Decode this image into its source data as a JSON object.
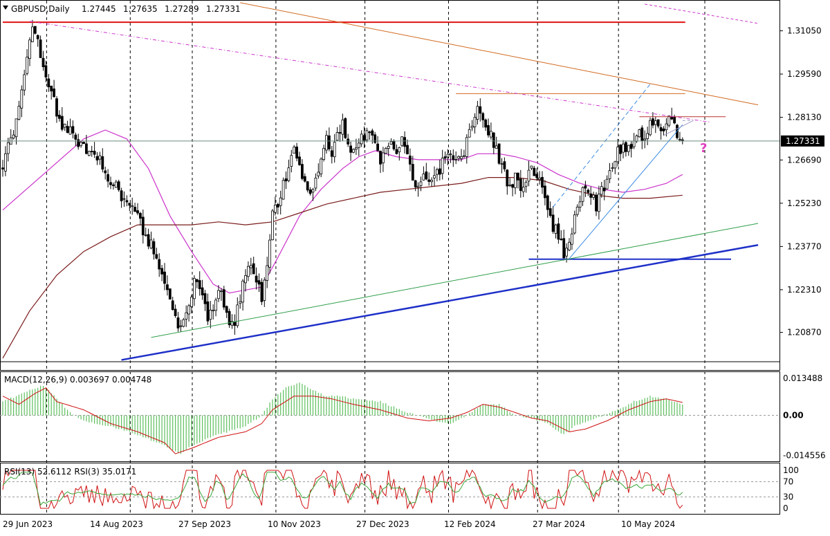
{
  "chart_data": {
    "type": "candlestick",
    "header": {
      "symbol": "GBPUSD,Daily",
      "open": "1.27445",
      "high": "1.27635",
      "low": "1.27289",
      "close": "1.27331"
    },
    "price_axis": {
      "ylim": [
        1.1995,
        1.3195
      ],
      "ticks": [
        "1.31050",
        "1.29590",
        "1.28130",
        "1.26690",
        "1.25230",
        "1.23770",
        "1.22310",
        "1.20870"
      ],
      "current_price": "1.27331"
    },
    "time_axis": {
      "labels": [
        "29 Jun 2023",
        "14 Aug 2023",
        "27 Sep 2023",
        "10 Nov 2023",
        "27 Dec 2023",
        "12 Feb 2024",
        "27 Mar 2024",
        "10 May 2024"
      ]
    },
    "annotation": "?",
    "path_waypoints": [
      [
        0,
        1.265
      ],
      [
        3,
        1.274
      ],
      [
        6,
        1.283
      ],
      [
        9,
        1.3
      ],
      [
        11,
        1.313
      ],
      [
        13,
        1.307
      ],
      [
        15,
        1.298
      ],
      [
        18,
        1.29
      ],
      [
        21,
        1.28
      ],
      [
        25,
        1.276
      ],
      [
        28,
        1.273
      ],
      [
        31,
        1.271
      ],
      [
        35,
        1.268
      ],
      [
        38,
        1.263
      ],
      [
        41,
        1.259
      ],
      [
        44,
        1.254
      ],
      [
        47,
        1.251
      ],
      [
        50,
        1.247
      ],
      [
        53,
        1.242
      ],
      [
        56,
        1.236
      ],
      [
        59,
        1.228
      ],
      [
        62,
        1.22
      ],
      [
        64,
        1.214
      ],
      [
        66,
        1.21
      ],
      [
        68,
        1.215
      ],
      [
        70,
        1.222
      ],
      [
        72,
        1.228
      ],
      [
        74,
        1.22
      ],
      [
        76,
        1.214
      ],
      [
        78,
        1.214
      ],
      [
        80,
        1.223
      ],
      [
        82,
        1.218
      ],
      [
        84,
        1.212
      ],
      [
        86,
        1.213
      ],
      [
        88,
        1.22
      ],
      [
        90,
        1.229
      ],
      [
        92,
        1.232
      ],
      [
        94,
        1.226
      ],
      [
        96,
        1.221
      ],
      [
        98,
        1.233
      ],
      [
        100,
        1.249
      ],
      [
        102,
        1.252
      ],
      [
        104,
        1.259
      ],
      [
        106,
        1.264
      ],
      [
        108,
        1.27
      ],
      [
        110,
        1.265
      ],
      [
        112,
        1.26
      ],
      [
        114,
        1.256
      ],
      [
        116,
        1.26
      ],
      [
        118,
        1.265
      ],
      [
        120,
        1.275
      ],
      [
        122,
        1.27
      ],
      [
        124,
        1.275
      ],
      [
        126,
        1.279
      ],
      [
        128,
        1.272
      ],
      [
        130,
        1.269
      ],
      [
        132,
        1.272
      ],
      [
        134,
        1.275
      ],
      [
        136,
        1.276
      ],
      [
        138,
        1.271
      ],
      [
        140,
        1.267
      ],
      [
        142,
        1.27
      ],
      [
        144,
        1.273
      ],
      [
        146,
        1.27
      ],
      [
        148,
        1.274
      ],
      [
        150,
        1.268
      ],
      [
        152,
        1.26
      ],
      [
        154,
        1.256
      ],
      [
        156,
        1.262
      ],
      [
        158,
        1.258
      ],
      [
        160,
        1.26
      ],
      [
        162,
        1.264
      ],
      [
        164,
        1.268
      ],
      [
        166,
        1.27
      ],
      [
        168,
        1.265
      ],
      [
        170,
        1.267
      ],
      [
        172,
        1.273
      ],
      [
        174,
        1.279
      ],
      [
        176,
        1.285
      ],
      [
        178,
        1.28
      ],
      [
        180,
        1.277
      ],
      [
        182,
        1.273
      ],
      [
        184,
        1.268
      ],
      [
        186,
        1.262
      ],
      [
        188,
        1.258
      ],
      [
        190,
        1.261
      ],
      [
        192,
        1.256
      ],
      [
        194,
        1.26
      ],
      [
        196,
        1.265
      ],
      [
        198,
        1.262
      ],
      [
        200,
        1.256
      ],
      [
        202,
        1.248
      ],
      [
        204,
        1.244
      ],
      [
        206,
        1.242
      ],
      [
        208,
        1.235
      ],
      [
        210,
        1.24
      ],
      [
        212,
        1.248
      ],
      [
        214,
        1.254
      ],
      [
        216,
        1.258
      ],
      [
        218,
        1.255
      ],
      [
        220,
        1.251
      ],
      [
        222,
        1.256
      ],
      [
        224,
        1.26
      ],
      [
        226,
        1.265
      ],
      [
        228,
        1.27
      ],
      [
        230,
        1.271
      ],
      [
        232,
        1.27
      ],
      [
        234,
        1.274
      ],
      [
        236,
        1.275
      ],
      [
        238,
        1.276
      ],
      [
        240,
        1.279
      ],
      [
        242,
        1.281
      ],
      [
        244,
        1.278
      ],
      [
        246,
        1.279
      ],
      [
        248,
        1.28
      ],
      [
        250,
        1.276
      ],
      [
        252,
        1.2733
      ]
    ],
    "bars": 253,
    "moving_averages": [
      {
        "color": "#cc33cc",
        "points": [
          [
            0,
            1.25
          ],
          [
            15,
            1.262
          ],
          [
            30,
            1.274
          ],
          [
            38,
            1.277
          ],
          [
            46,
            1.274
          ],
          [
            54,
            1.264
          ],
          [
            62,
            1.248
          ],
          [
            70,
            1.236
          ],
          [
            78,
            1.225
          ],
          [
            84,
            1.222
          ],
          [
            90,
            1.223
          ],
          [
            96,
            1.224
          ],
          [
            102,
            1.234
          ],
          [
            110,
            1.248
          ],
          [
            118,
            1.257
          ],
          [
            126,
            1.264
          ],
          [
            132,
            1.268
          ],
          [
            138,
            1.27
          ],
          [
            146,
            1.268
          ],
          [
            154,
            1.267
          ],
          [
            162,
            1.267
          ],
          [
            170,
            1.267
          ],
          [
            176,
            1.269
          ],
          [
            184,
            1.269
          ],
          [
            190,
            1.268
          ],
          [
            198,
            1.266
          ],
          [
            206,
            1.262
          ],
          [
            214,
            1.259
          ],
          [
            222,
            1.257
          ],
          [
            230,
            1.256
          ],
          [
            238,
            1.257
          ],
          [
            246,
            1.259
          ],
          [
            252,
            1.262
          ]
        ]
      },
      {
        "color": "#7a1a1a",
        "points": [
          [
            0,
            1.2
          ],
          [
            10,
            1.216
          ],
          [
            20,
            1.228
          ],
          [
            30,
            1.236
          ],
          [
            40,
            1.241
          ],
          [
            50,
            1.245
          ],
          [
            60,
            1.245
          ],
          [
            70,
            1.245
          ],
          [
            80,
            1.246
          ],
          [
            90,
            1.245
          ],
          [
            100,
            1.246
          ],
          [
            110,
            1.249
          ],
          [
            120,
            1.252
          ],
          [
            130,
            1.254
          ],
          [
            140,
            1.256
          ],
          [
            150,
            1.257
          ],
          [
            160,
            1.258
          ],
          [
            170,
            1.259
          ],
          [
            180,
            1.261
          ],
          [
            190,
            1.261
          ],
          [
            200,
            1.26
          ],
          [
            210,
            1.257
          ],
          [
            220,
            1.255
          ],
          [
            230,
            1.254
          ],
          [
            240,
            1.254
          ],
          [
            252,
            1.255
          ]
        ]
      }
    ],
    "levels": [
      {
        "color": "#e01010",
        "value": 1.3134,
        "from": 0,
        "to": 253
      },
      {
        "color": "#d2691e",
        "value": 1.2893,
        "from": 168,
        "to": 253
      },
      {
        "color": "#b83030",
        "value": 1.2815,
        "from": 236,
        "to": 268
      },
      {
        "color": "#1e30c8",
        "value": 1.2334,
        "from": 195,
        "to": 270
      }
    ],
    "trend_lines": [
      {
        "color": "#1e30c8",
        "width": 2.5,
        "dash": "",
        "from": [
          44,
          1.1994
        ],
        "to": [
          280,
          1.2382
        ]
      },
      {
        "color": "#2e9e4a",
        "width": 1,
        "dash": "",
        "from": [
          55,
          1.207
        ],
        "to": [
          280,
          1.2455
        ]
      },
      {
        "color": "#d2691e",
        "width": 1,
        "dash": "",
        "from": [
          88,
          1.32
        ],
        "to": [
          280,
          1.2855
        ]
      },
      {
        "color": "#cc33cc",
        "width": 1,
        "dash": "5,3,1,3",
        "from": [
          10,
          1.3137
        ],
        "to": [
          262,
          1.2797
        ]
      },
      {
        "color": "#cc33cc",
        "width": 1,
        "dash": "4,3",
        "from": [
          238,
          1.3195
        ],
        "to": [
          280,
          1.313
        ]
      },
      {
        "color": "#3a8ae0",
        "width": 1,
        "dash": "",
        "from": [
          210,
          1.2336
        ],
        "to": [
          252,
          1.2788
        ]
      },
      {
        "color": "#3a8ae0",
        "width": 1,
        "dash": "6,4",
        "from": [
          204,
          1.251
        ],
        "to": [
          240,
          1.2925
        ]
      },
      {
        "color": "#a0a0c8",
        "width": 1,
        "dash": "",
        "from": [
          245,
          1.2752
        ],
        "to": [
          256,
          1.2802
        ]
      },
      {
        "color": "#a0a0c8",
        "width": 1,
        "dash": "4,3",
        "from": [
          252,
          1.2802
        ],
        "to": [
          256,
          1.2802
        ]
      }
    ],
    "macd": {
      "label": "MACD(12,26,9) 0.003697 0.004748",
      "ticks": [
        "0.013488",
        "0.00",
        "-0.014556"
      ],
      "ylim": [
        -0.0165,
        0.0155
      ],
      "hist_waypoints": [
        [
          0,
          0.005
        ],
        [
          10,
          0.009
        ],
        [
          15,
          0.011
        ],
        [
          20,
          0.006
        ],
        [
          25,
          0.001
        ],
        [
          30,
          -0.002
        ],
        [
          40,
          -0.004
        ],
        [
          50,
          -0.007
        ],
        [
          55,
          -0.009
        ],
        [
          60,
          -0.011
        ],
        [
          64,
          -0.013
        ],
        [
          66,
          -0.014
        ],
        [
          70,
          -0.011
        ],
        [
          80,
          -0.007
        ],
        [
          90,
          -0.004
        ],
        [
          96,
          0.0
        ],
        [
          100,
          0.006
        ],
        [
          105,
          0.01
        ],
        [
          110,
          0.012
        ],
        [
          115,
          0.009
        ],
        [
          120,
          0.007
        ],
        [
          125,
          0.007
        ],
        [
          130,
          0.006
        ],
        [
          140,
          0.005
        ],
        [
          150,
          0.001
        ],
        [
          160,
          -0.002
        ],
        [
          166,
          -0.003
        ],
        [
          172,
          0.0
        ],
        [
          178,
          0.004
        ],
        [
          184,
          0.004
        ],
        [
          190,
          0.0
        ],
        [
          196,
          -0.001
        ],
        [
          202,
          -0.003
        ],
        [
          208,
          -0.007
        ],
        [
          212,
          -0.004
        ],
        [
          220,
          -0.001
        ],
        [
          228,
          0.002
        ],
        [
          234,
          0.005
        ],
        [
          240,
          0.007
        ],
        [
          246,
          0.006
        ],
        [
          252,
          0.0037
        ]
      ],
      "signal_waypoints": [
        [
          0,
          0.007
        ],
        [
          6,
          0.004
        ],
        [
          12,
          0.008
        ],
        [
          16,
          0.01
        ],
        [
          20,
          0.005
        ],
        [
          30,
          0.002
        ],
        [
          40,
          -0.003
        ],
        [
          50,
          -0.006
        ],
        [
          60,
          -0.01
        ],
        [
          64,
          -0.014
        ],
        [
          70,
          -0.012
        ],
        [
          80,
          -0.008
        ],
        [
          90,
          -0.006
        ],
        [
          96,
          -0.003
        ],
        [
          100,
          0.002
        ],
        [
          108,
          0.007
        ],
        [
          115,
          0.007
        ],
        [
          122,
          0.006
        ],
        [
          130,
          0.004
        ],
        [
          140,
          0.002
        ],
        [
          150,
          -0.001
        ],
        [
          158,
          -0.002
        ],
        [
          166,
          -0.001
        ],
        [
          172,
          0.001
        ],
        [
          178,
          0.004
        ],
        [
          184,
          0.003
        ],
        [
          190,
          0.001
        ],
        [
          196,
          -0.001
        ],
        [
          202,
          -0.002
        ],
        [
          210,
          -0.006
        ],
        [
          216,
          -0.005
        ],
        [
          224,
          -0.002
        ],
        [
          232,
          0.002
        ],
        [
          240,
          0.005
        ],
        [
          246,
          0.006
        ],
        [
          252,
          0.0047
        ]
      ]
    },
    "rsi": {
      "label": "RSI(13) 52.6112  RSI(3) 35.0171",
      "ticks": [
        "100",
        "70",
        "30",
        "0"
      ],
      "ylim": [
        0,
        100
      ]
    }
  }
}
